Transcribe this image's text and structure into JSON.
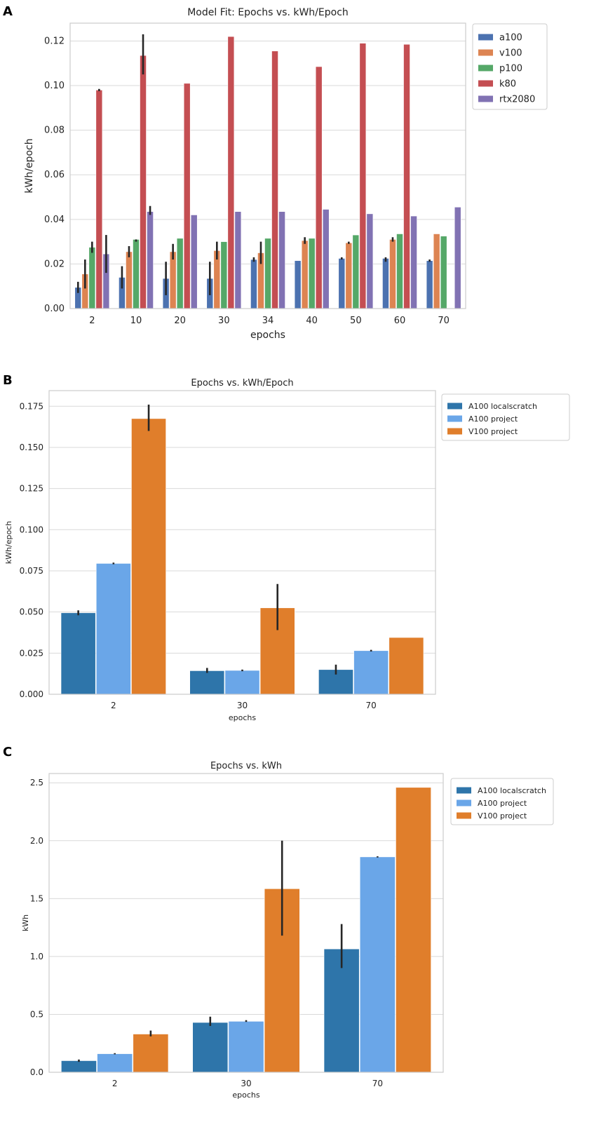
{
  "panels": {
    "a": "A",
    "b": "B",
    "c": "C"
  },
  "chart_data": [
    {
      "type": "bar",
      "title": "Model Fit: Epochs vs. kWh/Epoch",
      "xlabel": "epochs",
      "ylabel": "kWh/epoch",
      "ylim": [
        0,
        0.128
      ],
      "yticks": [
        0.0,
        0.02,
        0.04,
        0.06,
        0.08,
        0.1,
        0.12
      ],
      "ytick_labels": [
        "0.00",
        "0.02",
        "0.04",
        "0.06",
        "0.08",
        "0.10",
        "0.12"
      ],
      "categories": [
        "2",
        "10",
        "20",
        "30",
        "34",
        "40",
        "50",
        "60",
        "70"
      ],
      "legend_position": "top-right",
      "grid": true,
      "series": [
        {
          "name": "a100",
          "color": "#4c72b0",
          "values": [
            0.0095,
            0.014,
            0.0135,
            0.0135,
            0.022,
            0.0215,
            0.0225,
            0.0225,
            0.0215
          ],
          "err_low": [
            0.007,
            0.009,
            0.006,
            0.006,
            0.021,
            null,
            0.022,
            0.021,
            0.021
          ],
          "err_high": [
            0.012,
            0.019,
            0.021,
            0.021,
            0.023,
            null,
            0.023,
            0.023,
            0.022
          ]
        },
        {
          "name": "v100",
          "color": "#dd8452",
          "values": [
            0.0155,
            0.0255,
            0.0255,
            0.026,
            0.025,
            0.0305,
            0.0295,
            0.031,
            0.0335
          ],
          "err_low": [
            0.009,
            0.023,
            0.022,
            0.022,
            0.02,
            0.029,
            0.029,
            0.03,
            null
          ],
          "err_high": [
            0.022,
            0.028,
            0.029,
            0.03,
            0.03,
            0.032,
            0.03,
            0.032,
            null
          ]
        },
        {
          "name": "p100",
          "color": "#55a868",
          "values": [
            0.0275,
            0.031,
            0.0315,
            0.03,
            0.0315,
            0.0315,
            0.033,
            0.0335,
            0.0325
          ],
          "err_low": [
            0.025,
            0.03,
            null,
            null,
            null,
            null,
            null,
            null,
            null
          ],
          "err_high": [
            0.03,
            0.031,
            null,
            null,
            null,
            null,
            null,
            null,
            null
          ]
        },
        {
          "name": "k80",
          "color": "#c44e52",
          "values": [
            0.098,
            0.1135,
            0.101,
            0.122,
            0.1155,
            0.1085,
            0.119,
            0.1185,
            null
          ],
          "err_low": [
            0.0975,
            0.105,
            null,
            null,
            null,
            null,
            null,
            null,
            null
          ],
          "err_high": [
            0.0985,
            0.123,
            null,
            null,
            null,
            null,
            null,
            null,
            null
          ]
        },
        {
          "name": "rtx2080",
          "color": "#8172b3",
          "values": [
            0.0245,
            0.0435,
            0.042,
            0.0435,
            0.0435,
            0.0445,
            0.0425,
            0.0415,
            0.0455
          ],
          "err_low": [
            0.016,
            0.042,
            null,
            null,
            null,
            null,
            null,
            null,
            null
          ],
          "err_high": [
            0.033,
            0.046,
            null,
            null,
            null,
            null,
            null,
            null,
            null
          ]
        }
      ]
    },
    {
      "type": "bar",
      "title": "Epochs vs. kWh/Epoch",
      "xlabel": "epochs",
      "ylabel": "kWh/epoch",
      "ylim": [
        0,
        0.1845
      ],
      "yticks": [
        0.0,
        0.025,
        0.05,
        0.075,
        0.1,
        0.125,
        0.15,
        0.175
      ],
      "ytick_labels": [
        "0.000",
        "0.025",
        "0.050",
        "0.075",
        "0.100",
        "0.125",
        "0.150",
        "0.175"
      ],
      "categories": [
        "2",
        "30",
        "70"
      ],
      "legend_position": "top-right",
      "grid": true,
      "series": [
        {
          "name": "A100 localscratch",
          "color": "#2e75aa",
          "values": [
            0.0495,
            0.0143,
            0.015
          ],
          "err_low": [
            0.048,
            0.013,
            0.012
          ],
          "err_high": [
            0.051,
            0.016,
            0.018
          ]
        },
        {
          "name": "A100 project",
          "color": "#6aa6e8",
          "values": [
            0.0795,
            0.0145,
            0.0265
          ],
          "err_low": [
            0.079,
            0.014,
            0.026
          ],
          "err_high": [
            0.08,
            0.015,
            0.027
          ]
        },
        {
          "name": "V100 project",
          "color": "#e07e2b",
          "values": [
            0.1675,
            0.0525,
            0.0345
          ],
          "err_low": [
            0.16,
            0.039,
            null
          ],
          "err_high": [
            0.176,
            0.067,
            null
          ]
        }
      ]
    },
    {
      "type": "bar",
      "title": "Epochs vs. kWh",
      "xlabel": "epochs",
      "ylabel": "kWh",
      "ylim": [
        0,
        2.58
      ],
      "yticks": [
        0.0,
        0.5,
        1.0,
        1.5,
        2.0,
        2.5
      ],
      "ytick_labels": [
        "0.0",
        "0.5",
        "1.0",
        "1.5",
        "2.0",
        "2.5"
      ],
      "categories": [
        "2",
        "30",
        "70"
      ],
      "legend_position": "top-right",
      "grid": true,
      "series": [
        {
          "name": "A100 localscratch",
          "color": "#2e75aa",
          "values": [
            0.1,
            0.43,
            1.065
          ],
          "err_low": [
            0.09,
            0.4,
            0.9
          ],
          "err_high": [
            0.11,
            0.48,
            1.28
          ]
        },
        {
          "name": "A100 project",
          "color": "#6aa6e8",
          "values": [
            0.16,
            0.44,
            1.86
          ],
          "err_low": [
            0.155,
            0.435,
            1.855
          ],
          "err_high": [
            0.165,
            0.45,
            1.865
          ]
        },
        {
          "name": "V100 project",
          "color": "#e07e2b",
          "values": [
            0.33,
            1.585,
            2.46
          ],
          "err_low": [
            0.31,
            1.18,
            null
          ],
          "err_high": [
            0.36,
            2.0,
            null
          ]
        }
      ]
    }
  ]
}
